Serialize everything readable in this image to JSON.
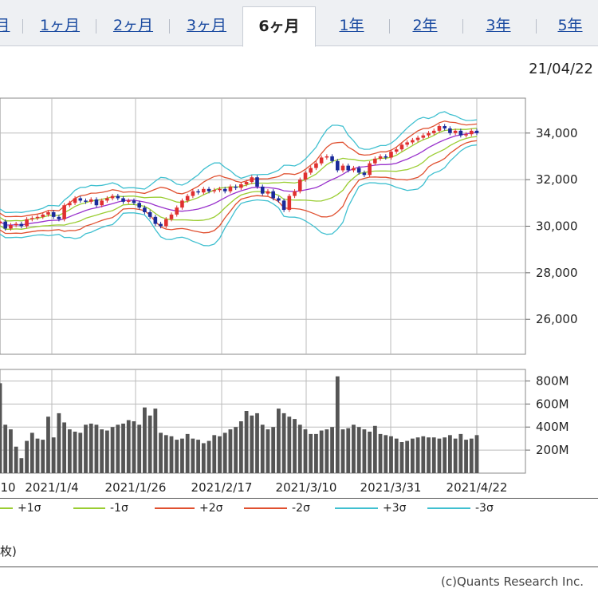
{
  "tabs": [
    {
      "label": "月",
      "active": false
    },
    {
      "label": "1ヶ月",
      "active": false
    },
    {
      "label": "2ヶ月",
      "active": false
    },
    {
      "label": "3ヶ月",
      "active": false
    },
    {
      "label": "6ヶ月",
      "active": true
    },
    {
      "label": "1年",
      "active": false
    },
    {
      "label": "2年",
      "active": false
    },
    {
      "label": "3年",
      "active": false
    },
    {
      "label": "5年",
      "active": false
    }
  ],
  "last_date": "21/04/22",
  "legend": [
    {
      "label": "+1σ",
      "color": "#9acd32"
    },
    {
      "label": "-1σ",
      "color": "#9acd32"
    },
    {
      "label": "+2σ",
      "color": "#e05030"
    },
    {
      "label": "-2σ",
      "color": "#e05030"
    },
    {
      "label": "+3σ",
      "color": "#40c0d0"
    },
    {
      "label": "-3σ",
      "color": "#40c0d0"
    }
  ],
  "note": "枚)",
  "copyright": "(c)Quants Research Inc.",
  "colors": {
    "up": "#e03030",
    "down": "#1a2a9a",
    "ma": "#9932cc",
    "sigma1": "#9acd32",
    "sigma2": "#e05030",
    "sigma3": "#40c0d0",
    "volume": "#555555"
  },
  "chart_data": [
    {
      "type": "candlestick",
      "ylim": [
        24500,
        35500
      ],
      "y_ticks": [
        26000,
        28000,
        30000,
        32000,
        34000
      ],
      "y_tick_labels": [
        "26,000",
        "28,000",
        "30,000",
        "32,000",
        "34,000"
      ],
      "close": [
        30200,
        29900,
        30050,
        30100,
        30000,
        30300,
        30350,
        30400,
        30500,
        30600,
        30400,
        30300,
        30900,
        31000,
        31200,
        31100,
        31050,
        31150,
        30900,
        31100,
        31200,
        31300,
        31200,
        31050,
        31100,
        31000,
        30800,
        30600,
        30400,
        30100,
        30000,
        30300,
        30500,
        30800,
        31100,
        31300,
        31500,
        31450,
        31600,
        31500,
        31550,
        31600,
        31500,
        31700,
        31650,
        31800,
        31900,
        32100,
        31700,
        31400,
        31500,
        31200,
        31100,
        30700,
        31300,
        31500,
        32000,
        32300,
        32500,
        32700,
        32950,
        33000,
        32800,
        32400,
        32600,
        32400,
        32500,
        32300,
        32200,
        32700,
        32900,
        33000,
        32950,
        33200,
        33300,
        33500,
        33600,
        33700,
        33800,
        33900,
        34000,
        34100,
        34300,
        34200,
        34000,
        34100,
        33900,
        33950,
        34100,
        34000
      ]
    },
    {
      "type": "bar",
      "ylim": [
        0,
        900
      ],
      "y_ticks": [
        200,
        400,
        600,
        800
      ],
      "y_tick_labels": [
        "200M",
        "400M",
        "600M",
        "800M"
      ],
      "x_tick_labels": [
        "10",
        "2021/1/4",
        "2021/1/26",
        "2021/2/17",
        "2021/3/10",
        "2021/3/31",
        "2021/4/22"
      ],
      "values": [
        780,
        420,
        380,
        230,
        130,
        280,
        350,
        300,
        290,
        490,
        310,
        520,
        440,
        380,
        360,
        350,
        420,
        430,
        420,
        380,
        370,
        400,
        420,
        430,
        460,
        450,
        420,
        570,
        500,
        560,
        350,
        330,
        320,
        290,
        300,
        340,
        300,
        290,
        260,
        280,
        330,
        320,
        350,
        380,
        400,
        450,
        540,
        500,
        520,
        420,
        380,
        400,
        560,
        520,
        490,
        470,
        420,
        380,
        340,
        340,
        370,
        380,
        400,
        840,
        380,
        390,
        420,
        400,
        380,
        360,
        410,
        340,
        330,
        320,
        300,
        270,
        280,
        300,
        310,
        320,
        310,
        310,
        300,
        310,
        330,
        300,
        340,
        290,
        300,
        330
      ]
    }
  ]
}
